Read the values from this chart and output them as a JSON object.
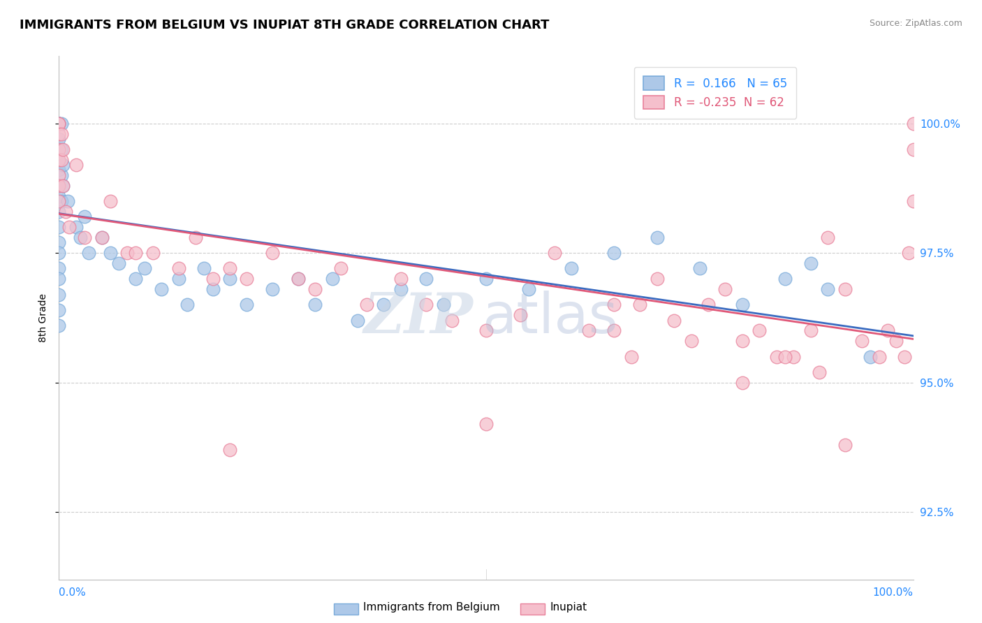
{
  "title": "IMMIGRANTS FROM BELGIUM VS INUPIAT 8TH GRADE CORRELATION CHART",
  "source_text": "Source: ZipAtlas.com",
  "ylabel": "8th Grade",
  "yaxis_labels": [
    "92.5%",
    "95.0%",
    "97.5%",
    "100.0%"
  ],
  "yaxis_values": [
    92.5,
    95.0,
    97.5,
    100.0
  ],
  "xaxis_range": [
    0.0,
    100.0
  ],
  "yaxis_range": [
    91.2,
    101.3
  ],
  "blue_R": 0.166,
  "blue_N": 65,
  "pink_R": -0.235,
  "pink_N": 62,
  "blue_color": "#adc8e8",
  "blue_edge_color": "#7aabda",
  "pink_color": "#f5bfcc",
  "pink_edge_color": "#e8809a",
  "blue_line_color": "#3a6bc0",
  "pink_line_color": "#e05878",
  "legend_blue_label": "Immigrants from Belgium",
  "legend_pink_label": "Inupiat",
  "blue_x": [
    0.0,
    0.0,
    0.0,
    0.0,
    0.0,
    0.0,
    0.0,
    0.0,
    0.0,
    0.0,
    0.0,
    0.0,
    0.0,
    0.0,
    0.0,
    0.0,
    0.0,
    0.0,
    0.0,
    0.0,
    0.0,
    0.0,
    0.3,
    0.3,
    0.3,
    0.3,
    0.5,
    0.5,
    1.0,
    2.0,
    2.5,
    3.0,
    3.5,
    5.0,
    6.0,
    7.0,
    9.0,
    10.0,
    12.0,
    14.0,
    15.0,
    17.0,
    18.0,
    20.0,
    22.0,
    25.0,
    28.0,
    30.0,
    32.0,
    35.0,
    38.0,
    40.0,
    43.0,
    45.0,
    50.0,
    55.0,
    60.0,
    65.0,
    70.0,
    75.0,
    80.0,
    85.0,
    88.0,
    90.0,
    95.0
  ],
  "blue_y": [
    100.0,
    100.0,
    100.0,
    100.0,
    100.0,
    100.0,
    100.0,
    99.7,
    99.5,
    99.3,
    99.1,
    98.8,
    98.6,
    98.3,
    98.0,
    97.7,
    97.5,
    97.2,
    97.0,
    96.7,
    96.4,
    96.1,
    100.0,
    99.5,
    99.0,
    98.5,
    99.2,
    98.8,
    98.5,
    98.0,
    97.8,
    98.2,
    97.5,
    97.8,
    97.5,
    97.3,
    97.0,
    97.2,
    96.8,
    97.0,
    96.5,
    97.2,
    96.8,
    97.0,
    96.5,
    96.8,
    97.0,
    96.5,
    97.0,
    96.2,
    96.5,
    96.8,
    97.0,
    96.5,
    97.0,
    96.8,
    97.2,
    97.5,
    97.8,
    97.2,
    96.5,
    97.0,
    97.3,
    96.8,
    95.5
  ],
  "pink_x": [
    0.0,
    0.0,
    0.0,
    0.0,
    0.0,
    0.0,
    0.0,
    0.0,
    0.3,
    0.3,
    0.5,
    0.5,
    0.8,
    1.2,
    2.0,
    3.0,
    5.0,
    6.0,
    8.0,
    9.0,
    11.0,
    14.0,
    16.0,
    18.0,
    20.0,
    22.0,
    25.0,
    28.0,
    30.0,
    33.0,
    36.0,
    40.0,
    43.0,
    46.0,
    50.0,
    54.0,
    58.0,
    62.0,
    65.0,
    67.0,
    68.0,
    70.0,
    72.0,
    74.0,
    76.0,
    78.0,
    80.0,
    82.0,
    84.0,
    86.0,
    88.0,
    90.0,
    92.0,
    94.0,
    96.0,
    97.0,
    98.0,
    99.0,
    99.5,
    100.0,
    100.0,
    100.0
  ],
  "pink_y": [
    100.0,
    100.0,
    99.8,
    99.5,
    99.3,
    99.0,
    98.8,
    98.5,
    99.8,
    99.3,
    99.5,
    98.8,
    98.3,
    98.0,
    99.2,
    97.8,
    97.8,
    98.5,
    97.5,
    97.5,
    97.5,
    97.2,
    97.8,
    97.0,
    97.2,
    97.0,
    97.5,
    97.0,
    96.8,
    97.2,
    96.5,
    97.0,
    96.5,
    96.2,
    96.0,
    96.3,
    97.5,
    96.0,
    96.5,
    95.5,
    96.5,
    97.0,
    96.2,
    95.8,
    96.5,
    96.8,
    95.8,
    96.0,
    95.5,
    95.5,
    96.0,
    97.8,
    96.8,
    95.8,
    95.5,
    96.0,
    95.8,
    95.5,
    97.5,
    100.0,
    99.5,
    98.5
  ],
  "pink_isolated_x": [
    20.0,
    50.0,
    65.0,
    80.0,
    85.0,
    89.0,
    92.0
  ],
  "pink_isolated_y": [
    93.7,
    94.2,
    96.0,
    95.0,
    95.5,
    95.2,
    93.8
  ]
}
